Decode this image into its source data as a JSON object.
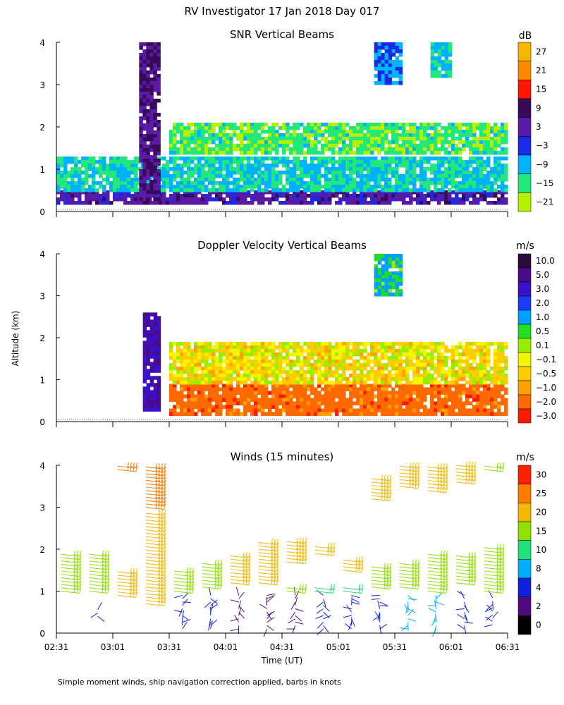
{
  "title": "RV Investigator  17 Jan 2018 Day 017",
  "ylabel": "Altitude (km)",
  "xlabel": "Time (UT)",
  "footer": "Simple moment winds, ship navigation correction applied, barbs in knots",
  "time_ticks": [
    "02:31",
    "03:01",
    "03:31",
    "04:01",
    "04:31",
    "05:01",
    "05:31",
    "06:01",
    "06:31"
  ],
  "altitude_ticks": [
    "0",
    "1",
    "2",
    "3",
    "4"
  ],
  "chart_data": [
    {
      "type": "heatmap",
      "title": "SNR Vertical Beams",
      "xlabel": "Time (UT)",
      "ylabel": "Altitude (km)",
      "xlim": [
        "02:31",
        "06:31"
      ],
      "ylim": [
        0,
        4
      ],
      "colorbar_unit": "dB",
      "colorbar_labels": [
        "27",
        "21",
        "15",
        "9",
        "3",
        "−3",
        "−9",
        "−15",
        "−21"
      ],
      "colorbar_colors": [
        "#f7b500",
        "#ff8a00",
        "#ff1500",
        "#3a0a5a",
        "#5a1aa5",
        "#1a2ae6",
        "#00b2ff",
        "#22e87a",
        "#b6f000"
      ],
      "features": [
        {
          "name": "surface layer",
          "time": "02:31-06:31",
          "altitude_km": [
            0.2,
            0.5
          ],
          "snr_db": 3
        },
        {
          "name": "boundary layer",
          "time": "02:31-06:31",
          "altitude_km": [
            0.5,
            1.3
          ],
          "snr_db": -12
        },
        {
          "name": "upper cloud band",
          "time": "03:31-06:31",
          "altitude_km": [
            1.4,
            2.1
          ],
          "snr_db": -16
        },
        {
          "name": "precipitation shaft",
          "time": "03:15-03:25",
          "altitude_km": [
            0.2,
            4.0
          ],
          "snr_db": 6
        },
        {
          "name": "upper echo 1",
          "time": "05:20-05:35",
          "altitude_km": [
            3.0,
            4.0
          ],
          "snr_db": -6
        },
        {
          "name": "upper echo 2",
          "time": "05:50-06:00",
          "altitude_km": [
            3.2,
            4.0
          ],
          "snr_db": -12
        }
      ]
    },
    {
      "type": "heatmap",
      "title": "Doppler Velocity Vertical Beams",
      "xlabel": "Time (UT)",
      "ylabel": "Altitude (km)",
      "xlim": [
        "02:31",
        "06:31"
      ],
      "ylim": [
        0,
        4
      ],
      "colorbar_unit": "m/s",
      "colorbar_labels": [
        "10.0",
        "5.0",
        "3.0",
        "2.0",
        "1.0",
        "0.5",
        "0.1",
        "−0.1",
        "−0.5",
        "−1.0",
        "−2.0",
        "−3.0"
      ],
      "colorbar_colors": [
        "#2a0a3a",
        "#4a0a8a",
        "#3a10c8",
        "#1a3aff",
        "#00a0ff",
        "#22dd22",
        "#99ee00",
        "#f5f500",
        "#ffcc00",
        "#ffa200",
        "#ff6a00",
        "#ff1a00"
      ],
      "features": [
        {
          "name": "falling precipitation",
          "time": "03:31-06:31",
          "altitude_km": [
            0.2,
            0.9
          ],
          "velocity_ms": -2.0
        },
        {
          "name": "cloud layer",
          "time": "03:31-06:31",
          "altitude_km": [
            0.9,
            1.9
          ],
          "velocity_ms": -0.3
        },
        {
          "name": "updraft shaft",
          "time": "03:17-03:25",
          "altitude_km": [
            0.3,
            2.6
          ],
          "velocity_ms": 4.0
        },
        {
          "name": "upper echo",
          "time": "05:20-05:35",
          "altitude_km": [
            3.0,
            4.0
          ],
          "velocity_ms": 0.8
        }
      ]
    },
    {
      "type": "scatter",
      "title": "Winds (15 minutes)",
      "xlabel": "Time (UT)",
      "ylabel": "Altitude (km)",
      "xlim": [
        "02:31",
        "06:31"
      ],
      "ylim": [
        0,
        4
      ],
      "colorbar_unit": "m/s",
      "colorbar_labels": [
        "30",
        "25",
        "20",
        "15",
        "10",
        "8",
        "4",
        "2",
        "0"
      ],
      "colorbar_colors": [
        "#ff2000",
        "#ff7a00",
        "#f5b800",
        "#8fe000",
        "#22e07a",
        "#00b0ff",
        "#1020e0",
        "#500a80",
        "#000000"
      ],
      "wind_profiles": [
        {
          "time": "02:38",
          "ranges": [
            [
              1.0,
              1.9,
              17
            ]
          ]
        },
        {
          "time": "02:53",
          "ranges": [
            [
              0.4,
              0.6,
              3
            ],
            [
              1.0,
              1.9,
              17
            ]
          ]
        },
        {
          "time": "03:08",
          "ranges": [
            [
              0.9,
              1.5,
              19
            ],
            [
              3.9,
              4.0,
              24
            ]
          ]
        },
        {
          "time": "03:23",
          "ranges": [
            [
              0.7,
              2.9,
              18
            ],
            [
              3.0,
              4.0,
              24
            ]
          ]
        },
        {
          "time": "03:38",
          "ranges": [
            [
              0.1,
              0.9,
              5
            ],
            [
              1.0,
              1.5,
              15
            ]
          ]
        },
        {
          "time": "03:53",
          "ranges": [
            [
              0.1,
              0.9,
              5
            ],
            [
              1.1,
              1.7,
              16
            ]
          ]
        },
        {
          "time": "04:08",
          "ranges": [
            [
              0.1,
              0.9,
              2
            ],
            [
              1.2,
              1.9,
              19
            ]
          ]
        },
        {
          "time": "04:23",
          "ranges": [
            [
              0.1,
              0.9,
              2
            ],
            [
              1.2,
              2.2,
              18
            ]
          ]
        },
        {
          "time": "04:38",
          "ranges": [
            [
              0.1,
              0.9,
              2
            ],
            [
              1.0,
              1.1,
              15
            ],
            [
              1.7,
              2.2,
              21
            ]
          ]
        },
        {
          "time": "04:53",
          "ranges": [
            [
              0.1,
              0.9,
              4
            ],
            [
              1.0,
              1.1,
              12
            ],
            [
              1.9,
              2.1,
              19
            ]
          ]
        },
        {
          "time": "05:08",
          "ranges": [
            [
              0.1,
              0.9,
              3
            ],
            [
              1.0,
              1.1,
              9
            ],
            [
              1.5,
              1.8,
              20
            ]
          ]
        },
        {
          "time": "05:23",
          "ranges": [
            [
              0.1,
              0.9,
              3
            ],
            [
              1.1,
              1.6,
              17
            ],
            [
              3.2,
              3.7,
              21
            ]
          ]
        },
        {
          "time": "05:38",
          "ranges": [
            [
              0.1,
              0.9,
              6
            ],
            [
              1.1,
              1.7,
              15
            ],
            [
              3.5,
              4.0,
              22
            ]
          ]
        },
        {
          "time": "05:53",
          "ranges": [
            [
              0.1,
              0.9,
              6
            ],
            [
              1.0,
              1.9,
              16
            ],
            [
              3.4,
              4.0,
              22
            ]
          ]
        },
        {
          "time": "06:08",
          "ranges": [
            [
              0.1,
              0.9,
              5
            ],
            [
              1.2,
              1.9,
              17
            ],
            [
              3.6,
              4.0,
              21
            ]
          ]
        },
        {
          "time": "06:23",
          "ranges": [
            [
              0.2,
              0.9,
              4
            ],
            [
              1.0,
              2.1,
              16
            ],
            [
              3.9,
              4.0,
              16
            ]
          ]
        }
      ]
    }
  ]
}
